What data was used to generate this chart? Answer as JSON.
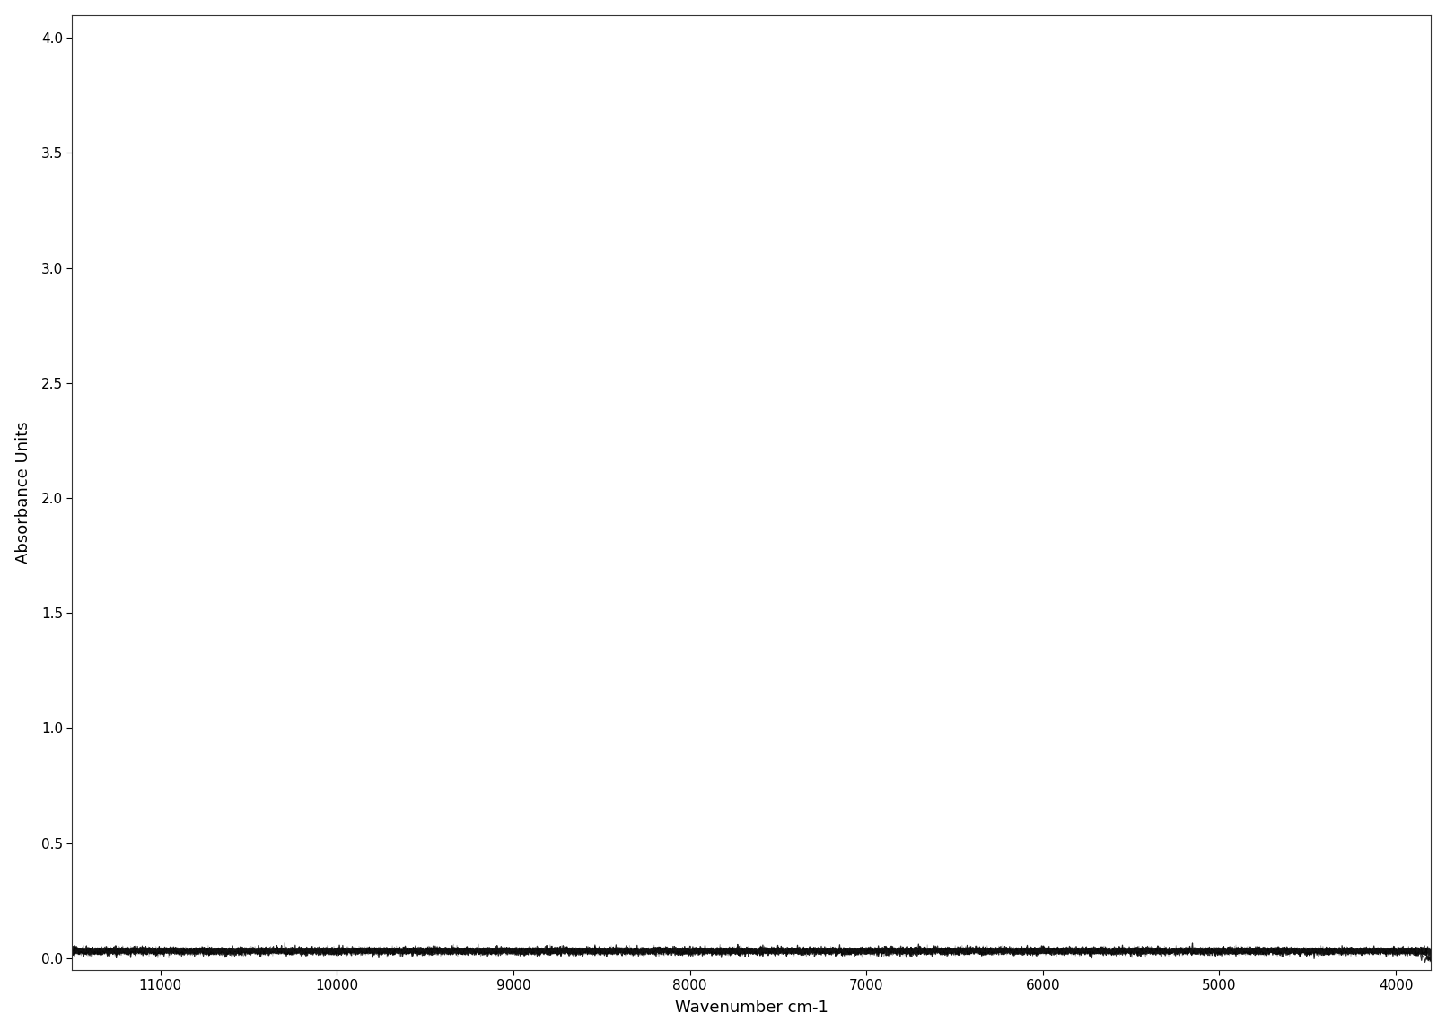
{
  "title": "",
  "xlabel": "Wavenumber cm-1",
  "ylabel": "Absorbance Units",
  "xlim": [
    11500,
    3800
  ],
  "ylim": [
    -0.05,
    4.1
  ],
  "xticks": [
    11000,
    10000,
    9000,
    8000,
    7000,
    6000,
    5000,
    4000
  ],
  "yticks": [
    0.0,
    0.5,
    1.0,
    1.5,
    2.0,
    2.5,
    3.0,
    3.5,
    4.0
  ],
  "background_color": "#ffffff",
  "num_spectra": 10,
  "noise_base": 0.006,
  "line_width": 0.9
}
